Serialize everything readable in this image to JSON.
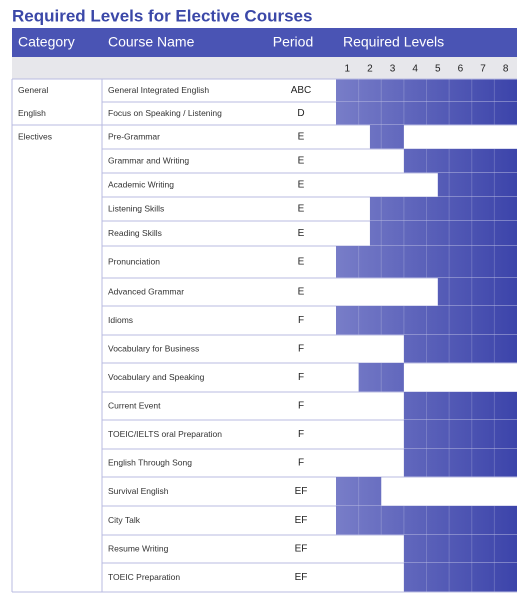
{
  "title": "Required Levels for Elective Courses",
  "header": {
    "category": "Category",
    "course": "Course Name",
    "period": "Period",
    "levels": "Required Levels"
  },
  "levels": [
    1,
    2,
    3,
    4,
    5,
    6,
    7,
    8
  ],
  "groups": [
    {
      "category": [
        "General",
        "English"
      ],
      "rows": [
        {
          "course": "General Integrated English",
          "period": "ABC",
          "shade": [
            0,
            8
          ]
        },
        {
          "course": "Focus on Speaking / Listening",
          "period": "D",
          "shade": [
            0,
            8
          ]
        }
      ]
    },
    {
      "category": [
        "Electives"
      ],
      "rows": [
        {
          "course": "Pre-Grammar",
          "period": "E",
          "shade": [
            1.5,
            3
          ]
        },
        {
          "course": "Grammar and Writing",
          "period": "E",
          "shade": [
            3,
            8
          ]
        },
        {
          "course": "Academic Writing",
          "period": "E",
          "shade": [
            4.5,
            8
          ]
        },
        {
          "course": "Listening Skills",
          "period": "E",
          "shade": [
            1.5,
            8
          ]
        },
        {
          "course": "Reading Skills",
          "period": "E",
          "shade": [
            1.5,
            8
          ]
        },
        {
          "course": "Pronunciation",
          "period": "E",
          "shade": [
            0,
            8
          ]
        },
        {
          "course": "Advanced Grammar",
          "period": "E",
          "shade": [
            4.5,
            8
          ]
        },
        {
          "course": "Idioms",
          "period": "F",
          "shade": [
            0,
            8
          ]
        },
        {
          "course": "Vocabulary for Business",
          "period": "F",
          "shade": [
            3,
            8
          ]
        },
        {
          "course": "Vocabulary and Speaking",
          "period": "F",
          "shade": [
            1,
            3
          ]
        },
        {
          "course": "Current Event",
          "period": "F",
          "shade": [
            3,
            8
          ]
        },
        {
          "course": "TOEIC/IELTS oral Preparation",
          "period": "F",
          "shade": [
            3,
            8
          ]
        },
        {
          "course": "English Through Song",
          "period": "F",
          "shade": [
            3,
            8
          ]
        },
        {
          "course": "Survival English",
          "period": "EF",
          "shade": [
            0,
            2
          ]
        },
        {
          "course": "City Talk",
          "period": "EF",
          "shade": [
            0,
            8
          ]
        },
        {
          "course": "Resume Writing",
          "period": "EF",
          "shade": [
            3,
            8
          ]
        },
        {
          "course": "TOEIC Preparation",
          "period": "EF",
          "shade": [
            3,
            8
          ]
        }
      ]
    }
  ]
}
